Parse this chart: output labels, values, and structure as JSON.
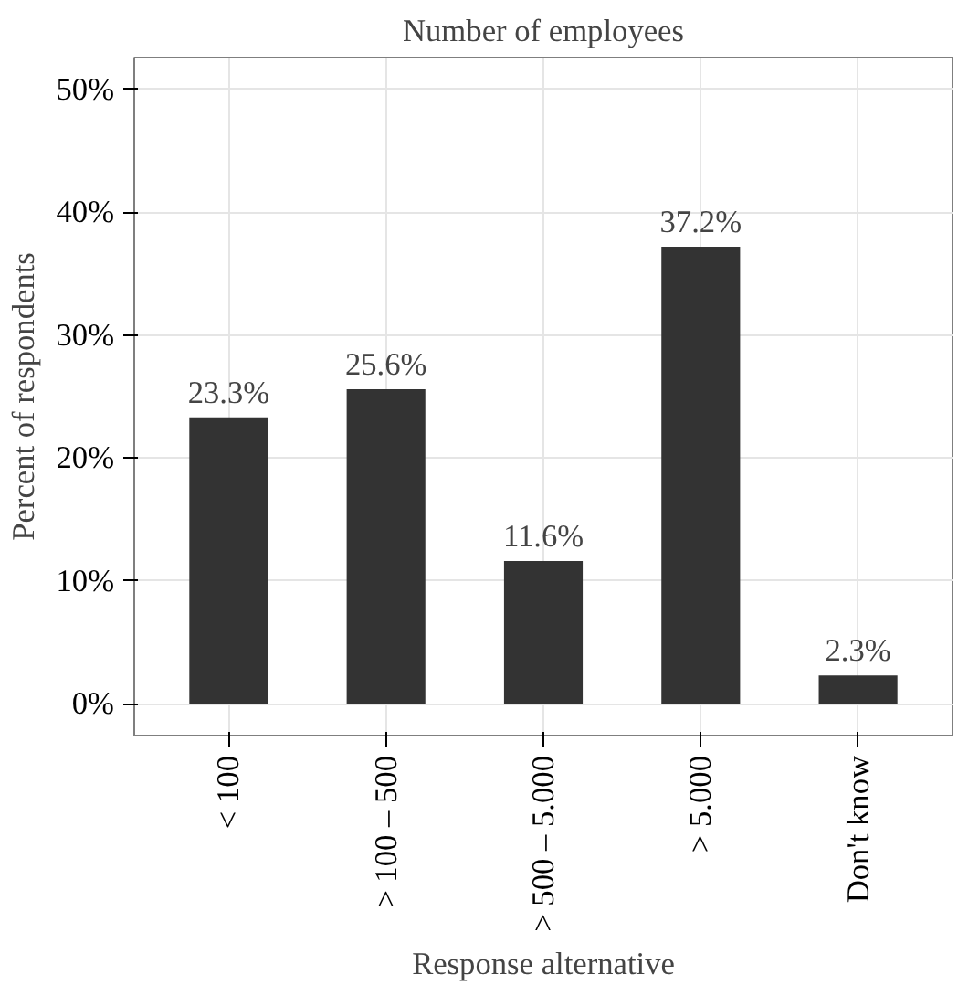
{
  "chart_data": {
    "type": "bar",
    "title": "Number of employees",
    "xlabel": "Response alternative",
    "ylabel": "Percent of respondents",
    "categories": [
      "< 100",
      "> 100 – 500",
      "> 500 – 5.000",
      "> 5.000",
      "Don't know"
    ],
    "values": [
      23.3,
      25.6,
      11.6,
      37.2,
      2.3
    ],
    "value_labels": [
      "23.3%",
      "25.6%",
      "11.6%",
      "37.2%",
      "2.3%"
    ],
    "color": "#333333",
    "ylim": [
      -2.6,
      52.6
    ],
    "yticks": [
      {
        "value": 0,
        "label": "0%"
      },
      {
        "value": 10,
        "label": "10%"
      },
      {
        "value": 20,
        "label": "20%"
      },
      {
        "value": 30,
        "label": "30%"
      },
      {
        "value": 40,
        "label": "40%"
      },
      {
        "value": 50,
        "label": "50%"
      }
    ],
    "grid": true
  }
}
